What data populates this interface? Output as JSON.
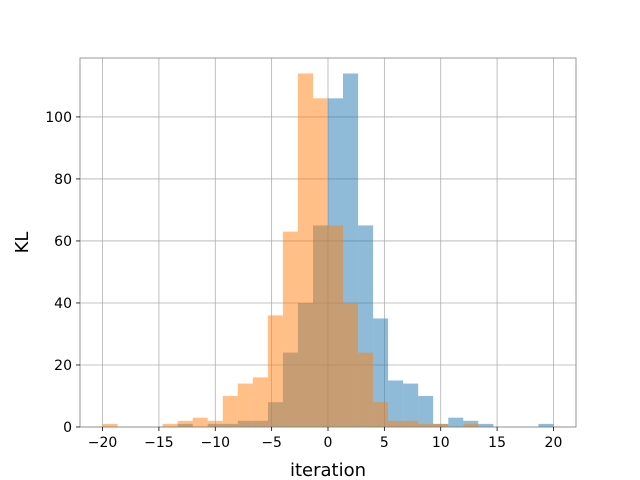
{
  "chart_data": {
    "type": "bar",
    "title": "",
    "xlabel": "iteration",
    "ylabel": "KL",
    "xlim": [
      -22,
      22
    ],
    "ylim": [
      0,
      119
    ],
    "xticks": [
      -20,
      -15,
      -10,
      -5,
      0,
      5,
      10,
      15,
      20
    ],
    "yticks": [
      0,
      20,
      40,
      60,
      80,
      100
    ],
    "grid": true,
    "bin_width": 1.3333,
    "series": [
      {
        "color": "#1f77b4",
        "opacity": 0.5,
        "bins": [
          {
            "x0": -13.33,
            "x1": -12.0,
            "count": 1
          },
          {
            "x0": -10.67,
            "x1": -9.33,
            "count": 1
          },
          {
            "x0": -9.33,
            "x1": -8.0,
            "count": 1
          },
          {
            "x0": -8.0,
            "x1": -6.67,
            "count": 2
          },
          {
            "x0": -6.67,
            "x1": -5.33,
            "count": 2
          },
          {
            "x0": -5.33,
            "x1": -4.0,
            "count": 8
          },
          {
            "x0": -4.0,
            "x1": -2.67,
            "count": 24
          },
          {
            "x0": -2.67,
            "x1": -1.33,
            "count": 40
          },
          {
            "x0": -1.33,
            "x1": 0.0,
            "count": 65
          },
          {
            "x0": 0.0,
            "x1": 1.33,
            "count": 106
          },
          {
            "x0": 1.33,
            "x1": 2.67,
            "count": 114
          },
          {
            "x0": 2.67,
            "x1": 4.0,
            "count": 65
          },
          {
            "x0": 4.0,
            "x1": 5.33,
            "count": 35
          },
          {
            "x0": 5.33,
            "x1": 6.67,
            "count": 15
          },
          {
            "x0": 6.67,
            "x1": 8.0,
            "count": 14
          },
          {
            "x0": 8.0,
            "x1": 9.33,
            "count": 10
          },
          {
            "x0": 9.33,
            "x1": 10.67,
            "count": 1
          },
          {
            "x0": 10.67,
            "x1": 12.0,
            "count": 3
          },
          {
            "x0": 12.0,
            "x1": 13.33,
            "count": 2
          },
          {
            "x0": 13.33,
            "x1": 14.67,
            "count": 1
          },
          {
            "x0": 18.67,
            "x1": 20.0,
            "count": 1
          }
        ]
      },
      {
        "color": "#ff7f0e",
        "opacity": 0.5,
        "bins": [
          {
            "x0": -20.0,
            "x1": -18.67,
            "count": 1
          },
          {
            "x0": -14.67,
            "x1": -13.33,
            "count": 1
          },
          {
            "x0": -13.33,
            "x1": -12.0,
            "count": 2
          },
          {
            "x0": -12.0,
            "x1": -10.67,
            "count": 3
          },
          {
            "x0": -10.67,
            "x1": -9.33,
            "count": 2
          },
          {
            "x0": -9.33,
            "x1": -8.0,
            "count": 10
          },
          {
            "x0": -8.0,
            "x1": -6.67,
            "count": 14
          },
          {
            "x0": -6.67,
            "x1": -5.33,
            "count": 16
          },
          {
            "x0": -5.33,
            "x1": -4.0,
            "count": 36
          },
          {
            "x0": -4.0,
            "x1": -2.67,
            "count": 63
          },
          {
            "x0": -2.67,
            "x1": -1.33,
            "count": 114
          },
          {
            "x0": -1.33,
            "x1": 0.0,
            "count": 106
          },
          {
            "x0": 0.0,
            "x1": 1.33,
            "count": 65
          },
          {
            "x0": 1.33,
            "x1": 2.67,
            "count": 40
          },
          {
            "x0": 2.67,
            "x1": 4.0,
            "count": 24
          },
          {
            "x0": 4.0,
            "x1": 5.33,
            "count": 8
          },
          {
            "x0": 5.33,
            "x1": 6.67,
            "count": 2
          },
          {
            "x0": 6.67,
            "x1": 8.0,
            "count": 2
          },
          {
            "x0": 8.0,
            "x1": 9.33,
            "count": 1
          },
          {
            "x0": 9.33,
            "x1": 10.67,
            "count": 1
          },
          {
            "x0": 12.0,
            "x1": 13.33,
            "count": 1
          }
        ]
      }
    ]
  }
}
